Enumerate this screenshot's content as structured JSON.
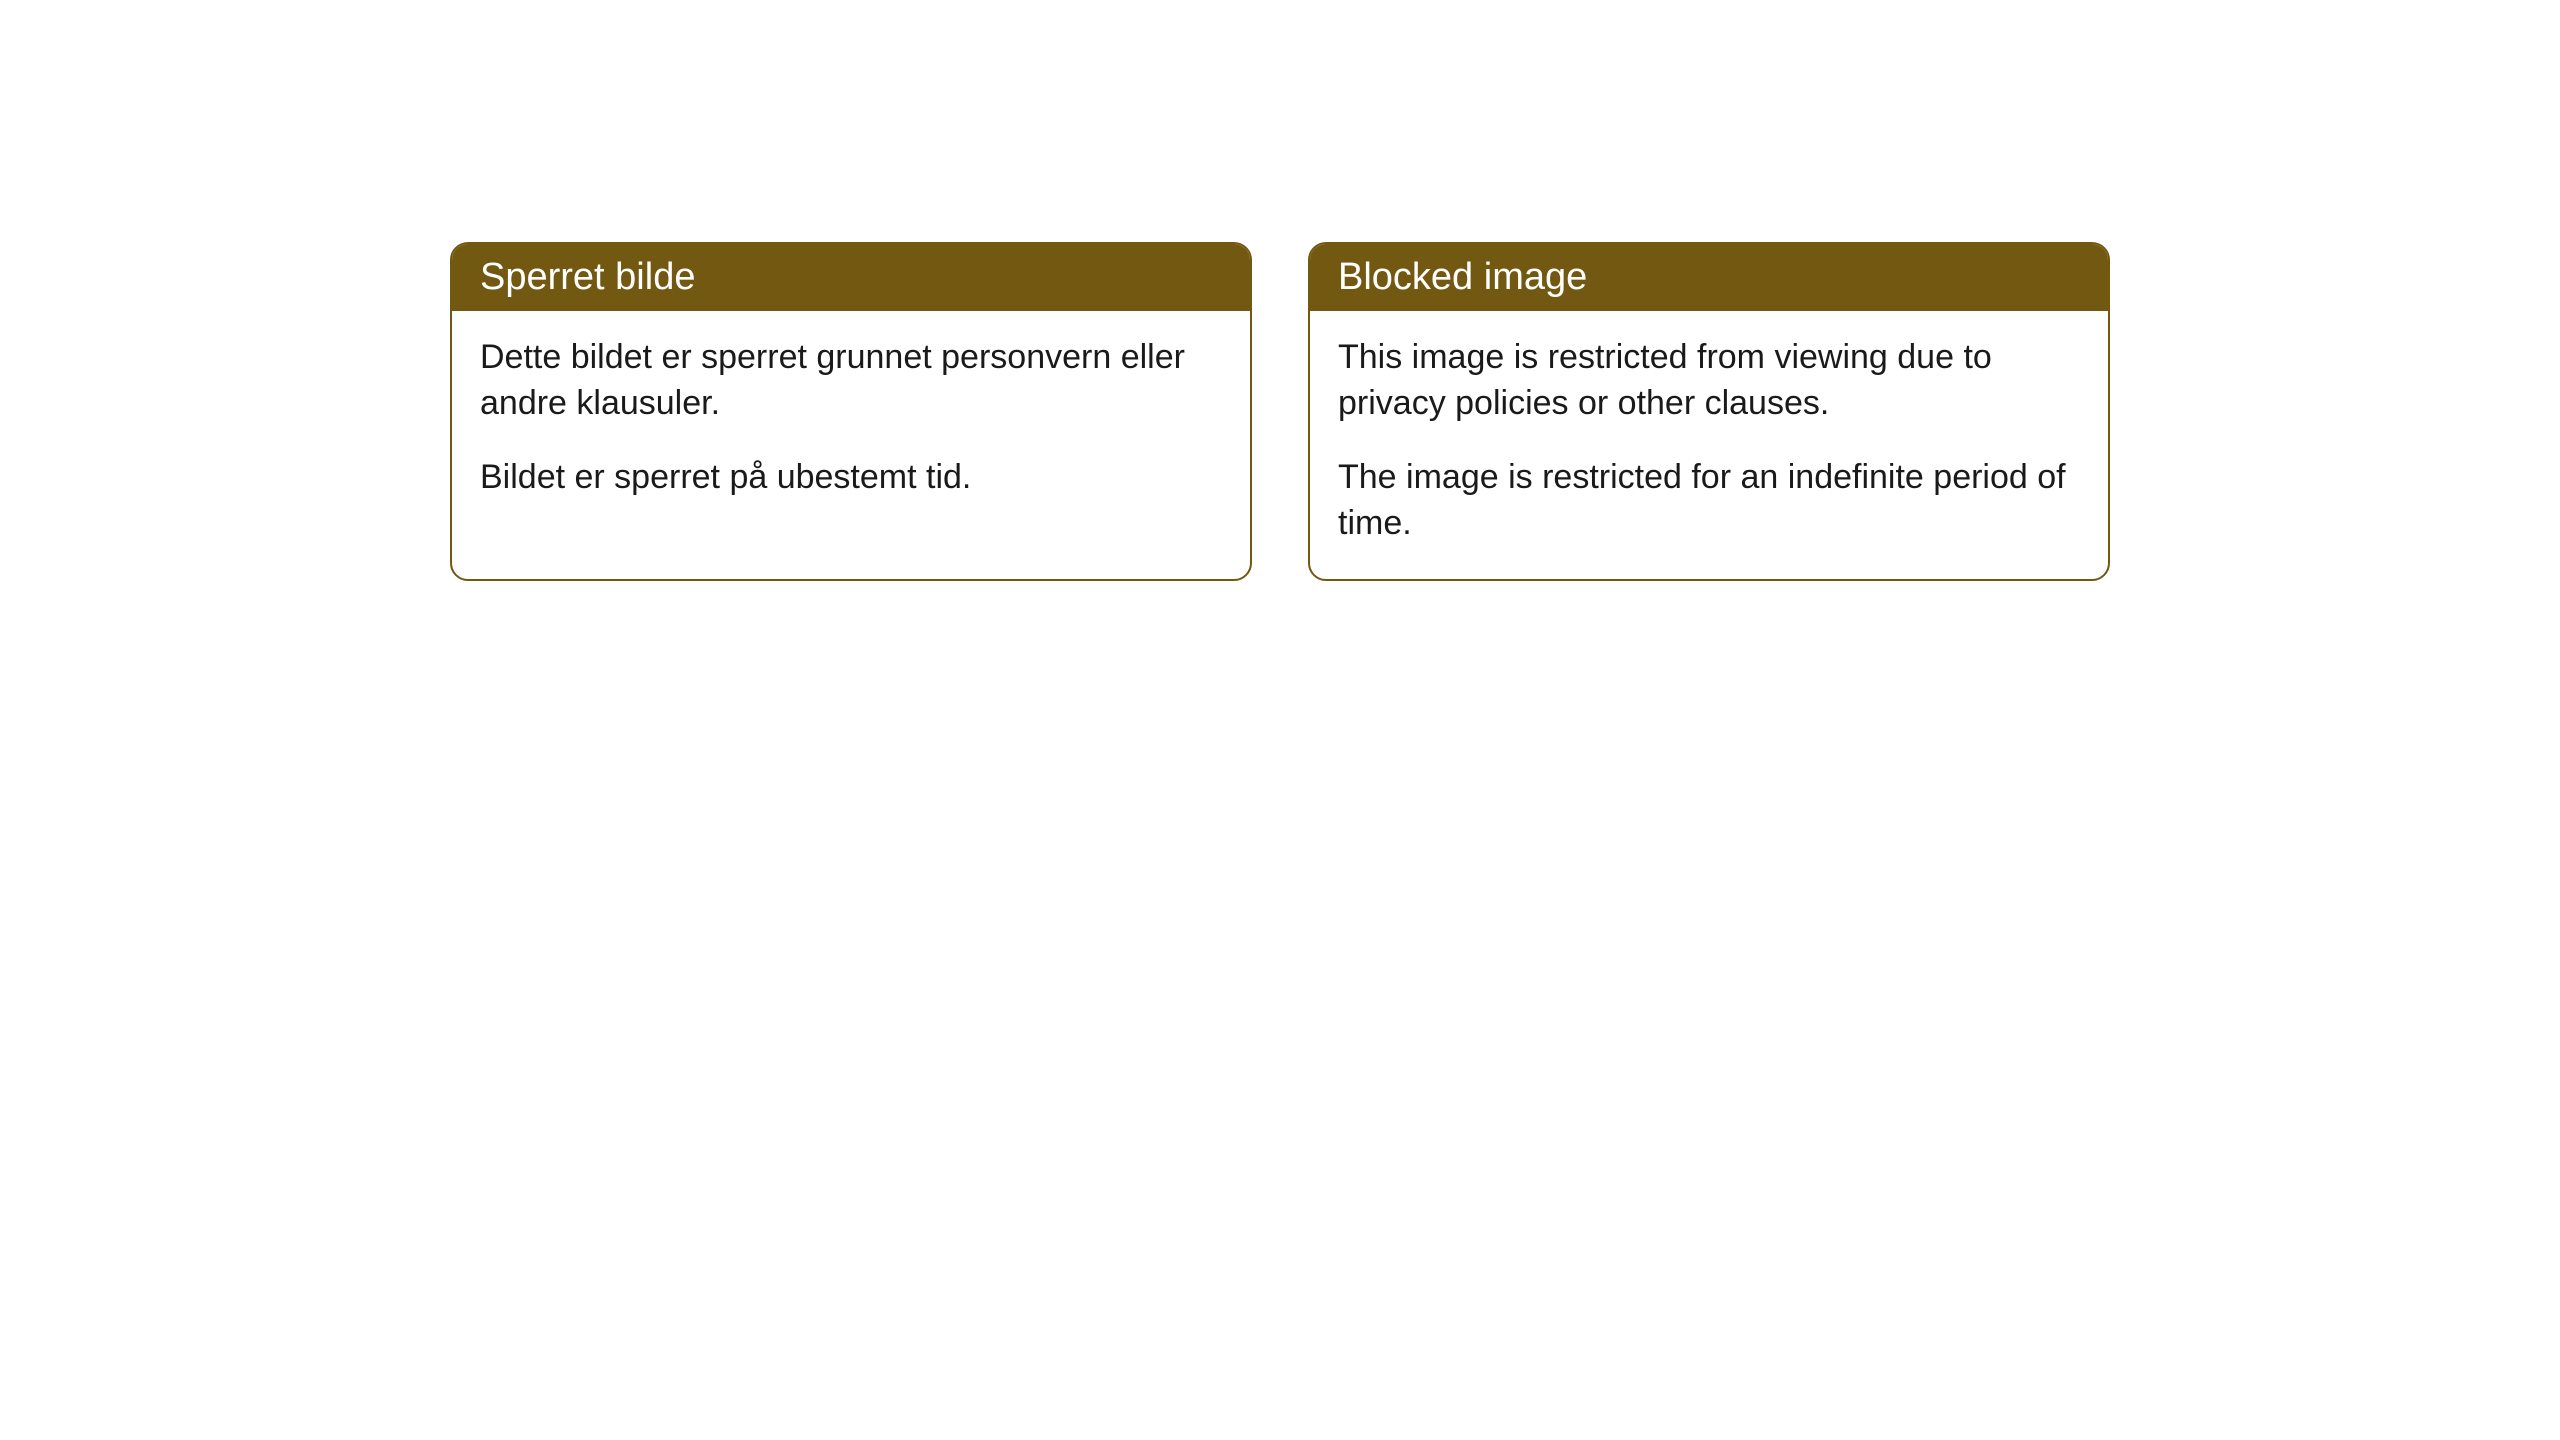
{
  "cards": [
    {
      "title": "Sperret bilde",
      "paragraph1": "Dette bildet er sperret grunnet personvern eller andre klausuler.",
      "paragraph2": "Bildet er sperret på ubestemt tid."
    },
    {
      "title": "Blocked image",
      "paragraph1": "This image is restricted from viewing due to privacy policies or other clauses.",
      "paragraph2": "The image is restricted for an indefinite period of time."
    }
  ],
  "styling": {
    "accent_color": "#735811",
    "border_color": "#735811",
    "background_color": "#ffffff",
    "text_color": "#1a1a1a",
    "header_text_color": "#ffffff",
    "border_radius": 18,
    "title_fontsize": 38,
    "body_fontsize": 34
  }
}
